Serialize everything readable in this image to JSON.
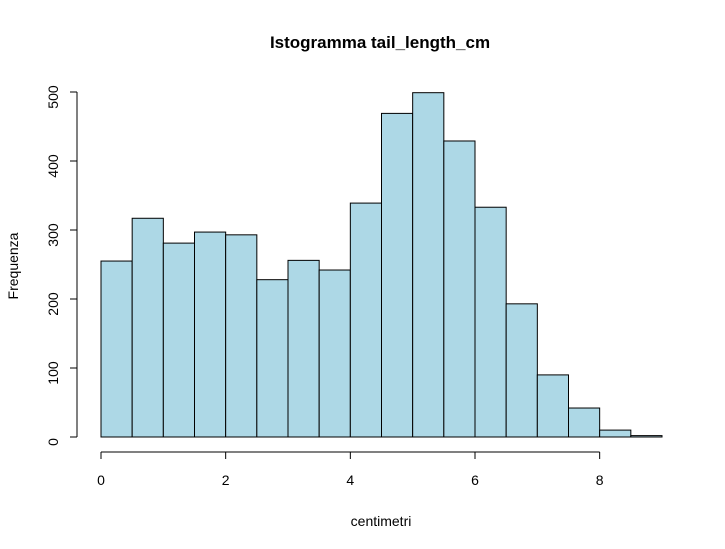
{
  "chart_data": {
    "type": "bar",
    "title": "Istogramma tail_length_cm",
    "xlabel": "centimetri",
    "ylabel": "Frequenza",
    "bar_color": "#add8e6",
    "border_color": "#000000",
    "bin_width": 0.5,
    "bin_edges": [
      0,
      0.5,
      1,
      1.5,
      2,
      2.5,
      3,
      3.5,
      4,
      4.5,
      5,
      5.5,
      6,
      6.5,
      7,
      7.5,
      8,
      8.5,
      9
    ],
    "values": [
      255,
      317,
      281,
      297,
      293,
      228,
      256,
      242,
      339,
      469,
      499,
      429,
      333,
      193,
      90,
      42,
      10,
      2
    ],
    "xlim": [
      0,
      9
    ],
    "ylim": [
      0,
      500
    ],
    "x_ticks": [
      0,
      2,
      4,
      6,
      8
    ],
    "y_ticks": [
      0,
      100,
      200,
      300,
      400,
      500
    ],
    "grid": false
  }
}
